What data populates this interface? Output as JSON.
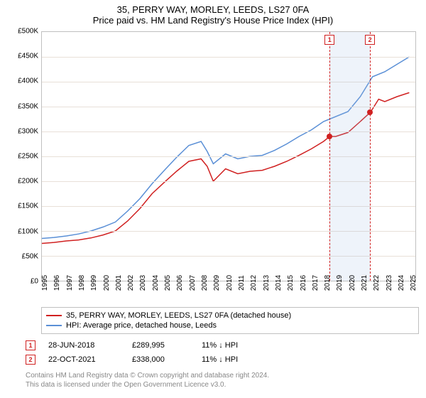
{
  "header": {
    "title": "35, PERRY WAY, MORLEY, LEEDS, LS27 0FA",
    "subtitle": "Price paid vs. HM Land Registry's House Price Index (HPI)"
  },
  "chart": {
    "type": "line",
    "background_color": "#ffffff",
    "grid_color": "#e8e0d8",
    "border_color": "#c0c0c0",
    "y": {
      "min": 0,
      "max": 500000,
      "step": 50000,
      "ticks": [
        "£0",
        "£50K",
        "£100K",
        "£150K",
        "£200K",
        "£250K",
        "£300K",
        "£350K",
        "£400K",
        "£450K",
        "£500K"
      ],
      "label_fontsize": 10
    },
    "x": {
      "min": 1995,
      "max": 2025.5,
      "ticks": [
        1995,
        1996,
        1997,
        1998,
        1999,
        2000,
        2001,
        2002,
        2003,
        2004,
        2005,
        2006,
        2007,
        2008,
        2009,
        2010,
        2011,
        2012,
        2013,
        2014,
        2015,
        2016,
        2017,
        2018,
        2019,
        2020,
        2021,
        2022,
        2023,
        2024,
        2025
      ],
      "label_fontsize": 10
    },
    "series": [
      {
        "name": "35, PERRY WAY, MORLEY, LEEDS, LS27 0FA (detached house)",
        "color": "#d02020",
        "line_width": 1.5,
        "points": [
          [
            1995,
            75000
          ],
          [
            1996,
            77000
          ],
          [
            1997,
            80000
          ],
          [
            1998,
            82000
          ],
          [
            1999,
            86000
          ],
          [
            2000,
            92000
          ],
          [
            2001,
            100000
          ],
          [
            2002,
            120000
          ],
          [
            2003,
            145000
          ],
          [
            2004,
            175000
          ],
          [
            2005,
            198000
          ],
          [
            2006,
            220000
          ],
          [
            2007,
            240000
          ],
          [
            2008,
            245000
          ],
          [
            2008.5,
            230000
          ],
          [
            2009,
            200000
          ],
          [
            2010,
            225000
          ],
          [
            2011,
            215000
          ],
          [
            2012,
            220000
          ],
          [
            2013,
            222000
          ],
          [
            2014,
            230000
          ],
          [
            2015,
            240000
          ],
          [
            2016,
            252000
          ],
          [
            2017,
            265000
          ],
          [
            2018,
            280000
          ],
          [
            2018.5,
            289995
          ],
          [
            2019,
            290000
          ],
          [
            2020,
            298000
          ],
          [
            2021,
            320000
          ],
          [
            2021.8,
            338000
          ],
          [
            2022,
            345000
          ],
          [
            2022.5,
            365000
          ],
          [
            2023,
            360000
          ],
          [
            2024,
            370000
          ],
          [
            2025,
            378000
          ]
        ]
      },
      {
        "name": "HPI: Average price, detached house, Leeds",
        "color": "#5a8fd6",
        "line_width": 1.5,
        "points": [
          [
            1995,
            85000
          ],
          [
            1996,
            87000
          ],
          [
            1997,
            90000
          ],
          [
            1998,
            94000
          ],
          [
            1999,
            100000
          ],
          [
            2000,
            108000
          ],
          [
            2001,
            118000
          ],
          [
            2002,
            140000
          ],
          [
            2003,
            165000
          ],
          [
            2004,
            195000
          ],
          [
            2005,
            222000
          ],
          [
            2006,
            248000
          ],
          [
            2007,
            272000
          ],
          [
            2008,
            280000
          ],
          [
            2008.5,
            260000
          ],
          [
            2009,
            235000
          ],
          [
            2010,
            255000
          ],
          [
            2011,
            245000
          ],
          [
            2012,
            250000
          ],
          [
            2013,
            252000
          ],
          [
            2014,
            262000
          ],
          [
            2015,
            275000
          ],
          [
            2016,
            290000
          ],
          [
            2017,
            303000
          ],
          [
            2018,
            320000
          ],
          [
            2019,
            330000
          ],
          [
            2020,
            340000
          ],
          [
            2021,
            370000
          ],
          [
            2022,
            410000
          ],
          [
            2023,
            420000
          ],
          [
            2024,
            435000
          ],
          [
            2025,
            450000
          ]
        ]
      }
    ],
    "sale_band": {
      "start": 2018.5,
      "end": 2021.8,
      "color": "rgba(160,190,230,0.18)"
    },
    "sale_lines": [
      {
        "x": 2018.5,
        "color": "#d02020"
      },
      {
        "x": 2021.8,
        "color": "#d02020"
      }
    ],
    "sale_points": [
      {
        "x": 2018.5,
        "y": 289995,
        "color": "#d02020"
      },
      {
        "x": 2021.8,
        "y": 338000,
        "color": "#d02020"
      }
    ],
    "marker_labels": [
      "1",
      "2"
    ]
  },
  "legend": {
    "items": [
      {
        "label": "35, PERRY WAY, MORLEY, LEEDS, LS27 0FA (detached house)",
        "color": "#d02020"
      },
      {
        "label": "HPI: Average price, detached house, Leeds",
        "color": "#5a8fd6"
      }
    ]
  },
  "sales": [
    {
      "num": "1",
      "date": "28-JUN-2018",
      "price": "£289,995",
      "diff": "11% ↓ HPI"
    },
    {
      "num": "2",
      "date": "22-OCT-2021",
      "price": "£338,000",
      "diff": "11% ↓ HPI"
    }
  ],
  "footer": {
    "line1": "Contains HM Land Registry data © Crown copyright and database right 2024.",
    "line2": "This data is licensed under the Open Government Licence v3.0."
  }
}
